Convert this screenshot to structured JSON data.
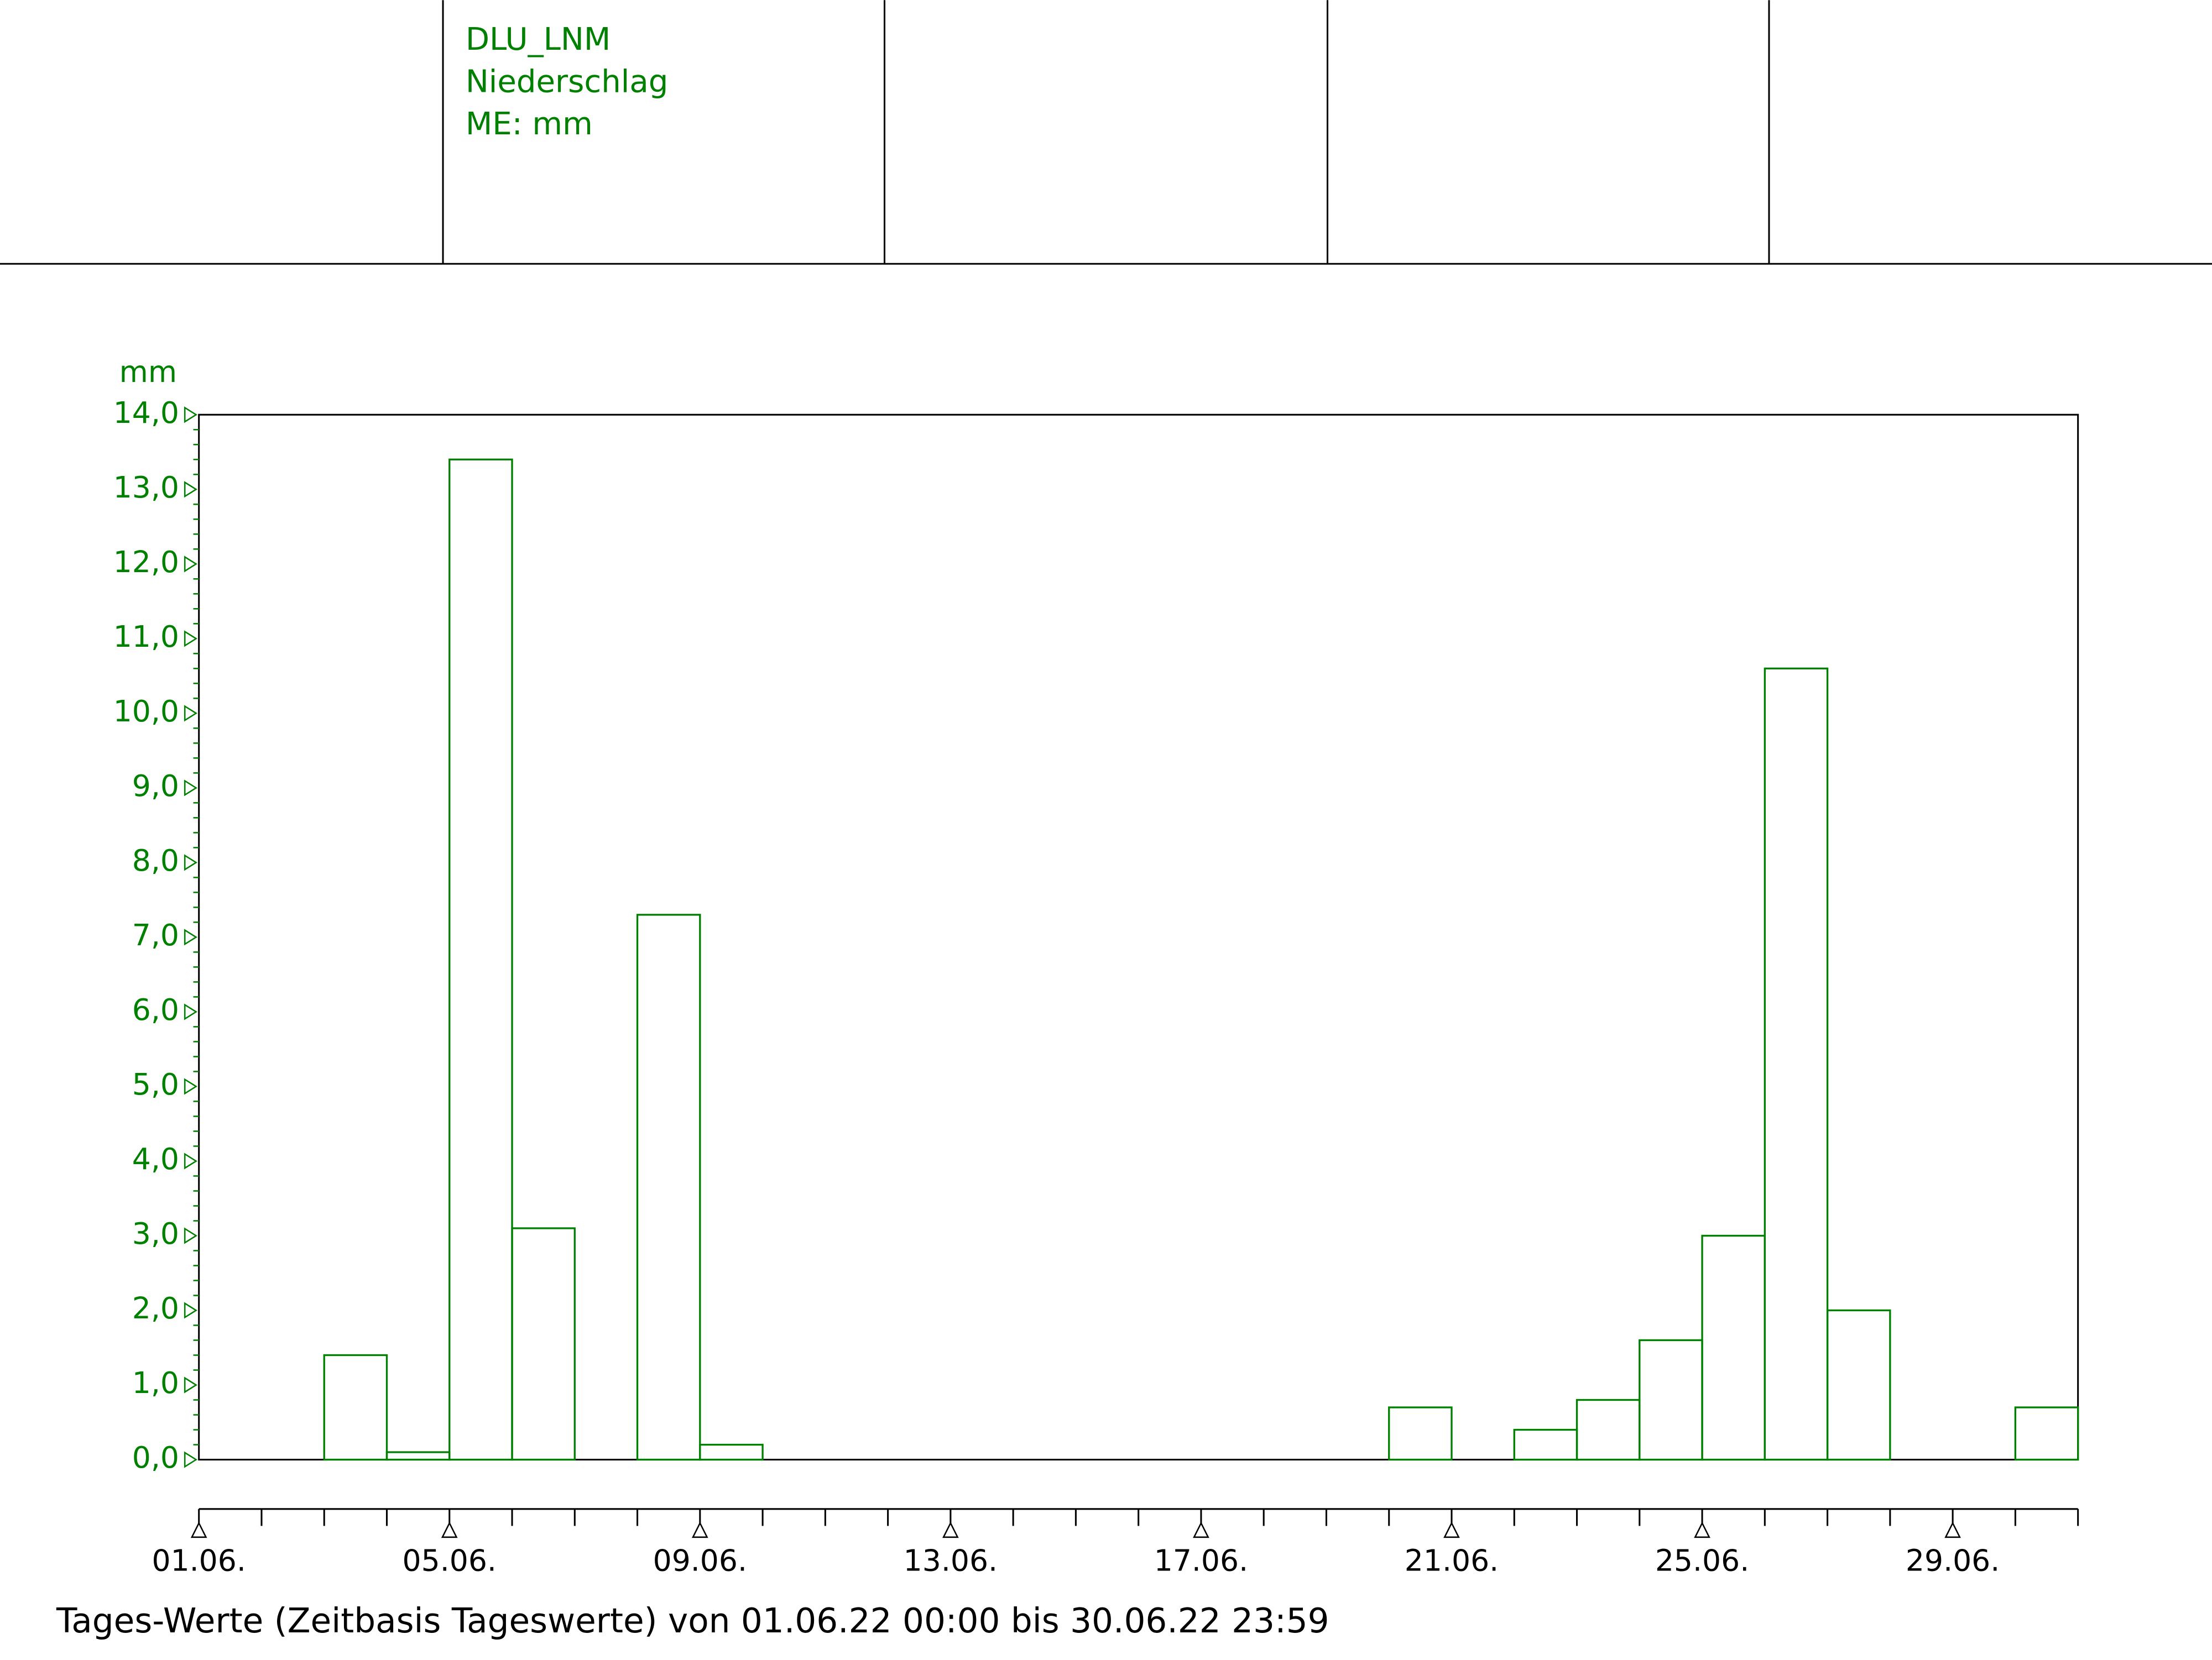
{
  "header": {
    "lines": [
      "DLU_LNM",
      "Niederschlag",
      "ME: mm"
    ]
  },
  "chart_data": {
    "type": "bar",
    "y_unit": "mm",
    "caption": "Tages-Werte (Zeitbasis Tageswerte) von 01.06.22 00:00 bis 30.06.22 23:59",
    "categories": [
      "01.06.",
      null,
      null,
      null,
      "05.06.",
      null,
      null,
      null,
      "09.06.",
      null,
      null,
      null,
      "13.06.",
      null,
      null,
      null,
      "17.06.",
      null,
      null,
      null,
      "21.06.",
      null,
      null,
      null,
      "25.06.",
      null,
      null,
      null,
      "29.06.",
      null
    ],
    "values": [
      0,
      0,
      1.4,
      0.1,
      13.4,
      3.1,
      0,
      7.3,
      0.2,
      0,
      0,
      0,
      0,
      0,
      0,
      0,
      0,
      0,
      0,
      0.7,
      0,
      0.4,
      0.8,
      1.6,
      3.0,
      10.6,
      2.0,
      0,
      0,
      0.7
    ],
    "color": "#008000",
    "ylim": [
      0,
      14
    ],
    "yticks": [
      {
        "value": 0,
        "label": "0,0"
      },
      {
        "value": 1,
        "label": "1,0"
      },
      {
        "value": 2,
        "label": "2,0"
      },
      {
        "value": 3,
        "label": "3,0"
      },
      {
        "value": 4,
        "label": "4,0"
      },
      {
        "value": 5,
        "label": "5,0"
      },
      {
        "value": 6,
        "label": "6,0"
      },
      {
        "value": 7,
        "label": "7,0"
      },
      {
        "value": 8,
        "label": "8,0"
      },
      {
        "value": 9,
        "label": "9,0"
      },
      {
        "value": 10,
        "label": "10,0"
      },
      {
        "value": 11,
        "label": "11,0"
      },
      {
        "value": 12,
        "label": "12,0"
      },
      {
        "value": 13,
        "label": "13,0"
      },
      {
        "value": 14,
        "label": "14,0"
      }
    ]
  }
}
